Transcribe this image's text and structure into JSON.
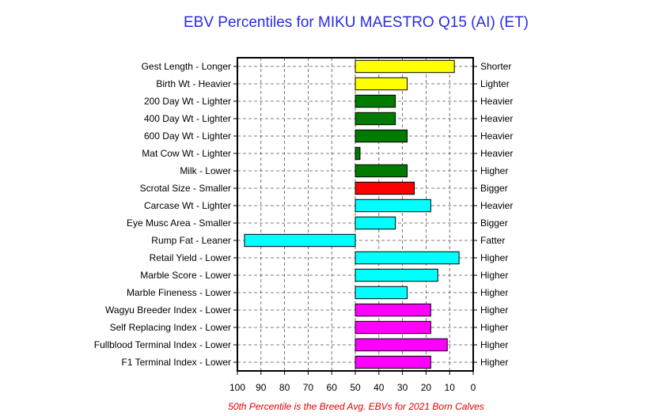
{
  "chart_data": {
    "type": "bar",
    "orientation": "horizontal",
    "title": "EBV Percentiles for MIKU MAESTRO Q15 (AI) (ET)",
    "footnote": "50th Percentile is the Breed Avg. EBVs for 2021 Born Calves",
    "xlim": [
      100,
      0
    ],
    "x_reversed": true,
    "baseline": 50,
    "xticks": [
      "100",
      "90",
      "80",
      "70",
      "60",
      "50",
      "40",
      "30",
      "20",
      "10",
      "0"
    ],
    "grid": true,
    "categories": [
      {
        "left": "Gest Length - Longer",
        "right": "Shorter",
        "value": 8,
        "color": "#ffff00"
      },
      {
        "left": "Birth Wt - Heavier",
        "right": "Lighter",
        "value": 28,
        "color": "#ffff00"
      },
      {
        "left": "200 Day Wt - Lighter",
        "right": "Heavier",
        "value": 33,
        "color": "#007a00"
      },
      {
        "left": "400 Day Wt - Lighter",
        "right": "Heavier",
        "value": 33,
        "color": "#007a00"
      },
      {
        "left": "600 Day Wt - Lighter",
        "right": "Heavier",
        "value": 28,
        "color": "#007a00"
      },
      {
        "left": "Mat Cow Wt - Lighter",
        "right": "Heavier",
        "value": 48,
        "color": "#007a00"
      },
      {
        "left": "Milk - Lower",
        "right": "Higher",
        "value": 28,
        "color": "#007a00"
      },
      {
        "left": "Scrotal Size - Smaller",
        "right": "Bigger",
        "value": 25,
        "color": "#ff0000"
      },
      {
        "left": "Carcase Wt - Lighter",
        "right": "Heavier",
        "value": 18,
        "color": "#00ffff"
      },
      {
        "left": "Eye Musc Area - Smaller",
        "right": "Bigger",
        "value": 33,
        "color": "#00ffff"
      },
      {
        "left": "Rump Fat - Leaner",
        "right": "Fatter",
        "value": 97,
        "color": "#00ffff"
      },
      {
        "left": "Retail Yield - Lower",
        "right": "Higher",
        "value": 6,
        "color": "#00ffff"
      },
      {
        "left": "Marble Score - Lower",
        "right": "Higher",
        "value": 15,
        "color": "#00ffff"
      },
      {
        "left": "Marble Fineness - Lower",
        "right": "Higher",
        "value": 28,
        "color": "#00ffff"
      },
      {
        "left": "Wagyu Breeder Index - Lower",
        "right": "Higher",
        "value": 18,
        "color": "#ff00ff"
      },
      {
        "left": "Self Replacing Index - Lower",
        "right": "Higher",
        "value": 18,
        "color": "#ff00ff"
      },
      {
        "left": "Fullblood Terminal Index - Lower",
        "right": "Higher",
        "value": 11,
        "color": "#ff00ff"
      },
      {
        "left": "F1 Terminal Index - Lower",
        "right": "Higher",
        "value": 18,
        "color": "#ff00ff"
      }
    ]
  }
}
